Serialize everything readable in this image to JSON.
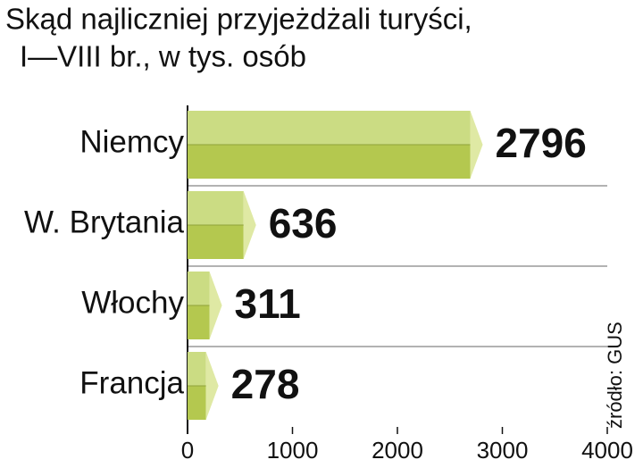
{
  "chart_data": {
    "type": "bar",
    "orientation": "horizontal",
    "title": "Skąd najliczniej przyjeżdżali turyści,",
    "subtitle": "I—VIII br., w tys. osób",
    "source": "źródło: GUS",
    "categories": [
      "Niemcy",
      "W. Brytania",
      "Włochy",
      "Francja"
    ],
    "values": [
      2796,
      636,
      311,
      278
    ],
    "color": "#b4c84f",
    "xlim": [
      0,
      4000
    ],
    "xticks": [
      0,
      1000,
      2000,
      3000,
      4000
    ]
  }
}
